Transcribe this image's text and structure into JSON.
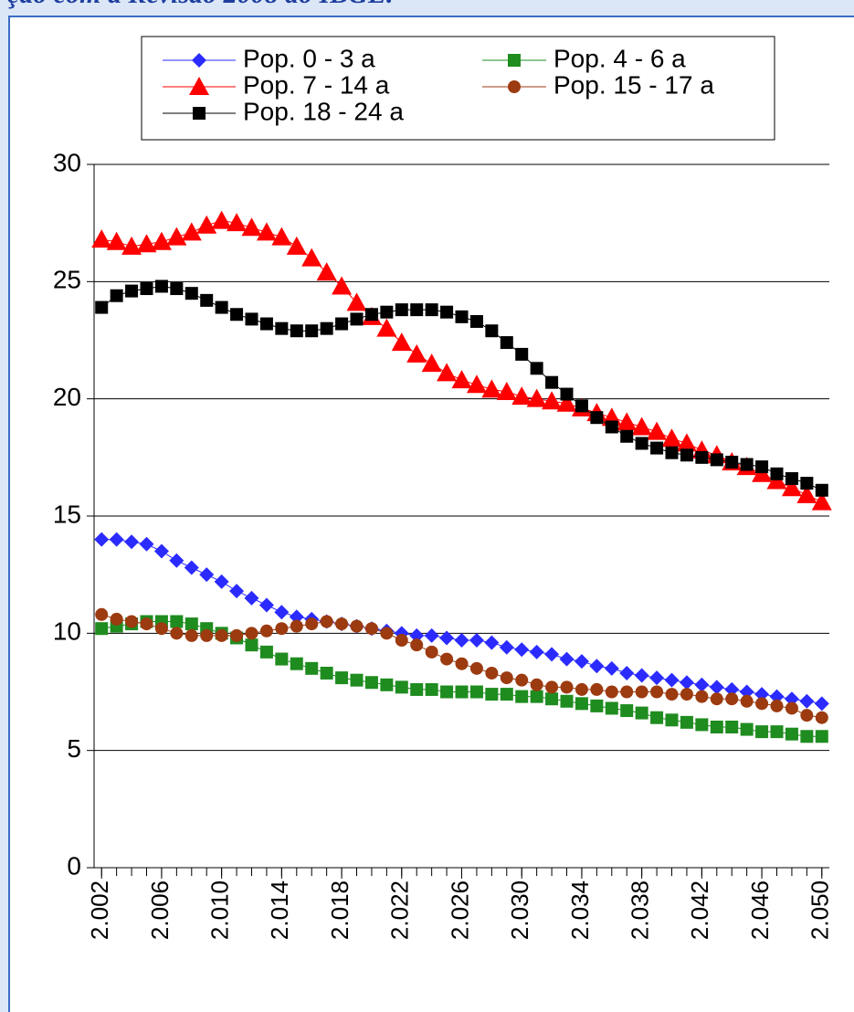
{
  "chart_data": {
    "type": "scatter",
    "title": "ção com a Revisão 2008 do IBGE.",
    "x": [
      2002,
      2003,
      2004,
      2005,
      2006,
      2007,
      2008,
      2009,
      2010,
      2011,
      2012,
      2013,
      2014,
      2015,
      2016,
      2017,
      2018,
      2019,
      2020,
      2021,
      2022,
      2023,
      2024,
      2025,
      2026,
      2027,
      2028,
      2029,
      2030,
      2031,
      2032,
      2033,
      2034,
      2035,
      2036,
      2037,
      2038,
      2039,
      2040,
      2041,
      2042,
      2043,
      2044,
      2045,
      2046,
      2047,
      2048,
      2049,
      2050
    ],
    "xlim": [
      2001.5,
      2050.5
    ],
    "xticks": [
      {
        "value": 2002,
        "label": "2.002"
      },
      {
        "value": 2006,
        "label": "2.006"
      },
      {
        "value": 2010,
        "label": "2.010"
      },
      {
        "value": 2014,
        "label": "2.014"
      },
      {
        "value": 2018,
        "label": "2.018"
      },
      {
        "value": 2022,
        "label": "2.022"
      },
      {
        "value": 2026,
        "label": "2.026"
      },
      {
        "value": 2030,
        "label": "2.030"
      },
      {
        "value": 2034,
        "label": "2.034"
      },
      {
        "value": 2038,
        "label": "2.038"
      },
      {
        "value": 2042,
        "label": "2.042"
      },
      {
        "value": 2046,
        "label": "2.046"
      },
      {
        "value": 2050,
        "label": "2.050"
      }
    ],
    "ylim": [
      0,
      30
    ],
    "yticks": [
      0,
      5,
      10,
      15,
      20,
      25,
      30
    ],
    "grid": true,
    "series": [
      {
        "name": "Pop. 0 - 3 a",
        "color": "#2b2bff",
        "marker": "diamond",
        "values": [
          14.0,
          14.0,
          13.9,
          13.8,
          13.5,
          13.1,
          12.8,
          12.5,
          12.2,
          11.8,
          11.5,
          11.2,
          10.9,
          10.7,
          10.6,
          10.5,
          10.4,
          10.3,
          10.2,
          10.1,
          10.0,
          9.9,
          9.9,
          9.8,
          9.7,
          9.7,
          9.6,
          9.4,
          9.3,
          9.2,
          9.1,
          8.9,
          8.8,
          8.6,
          8.5,
          8.3,
          8.2,
          8.1,
          8.0,
          7.9,
          7.8,
          7.7,
          7.6,
          7.5,
          7.4,
          7.3,
          7.2,
          7.1,
          7.0
        ]
      },
      {
        "name": "Pop. 4 - 6 a",
        "color": "#1f8c1f",
        "marker": "square",
        "values": [
          10.2,
          10.3,
          10.4,
          10.5,
          10.5,
          10.5,
          10.4,
          10.2,
          10.0,
          9.8,
          9.5,
          9.2,
          8.9,
          8.7,
          8.5,
          8.3,
          8.1,
          8.0,
          7.9,
          7.8,
          7.7,
          7.6,
          7.6,
          7.5,
          7.5,
          7.5,
          7.4,
          7.4,
          7.3,
          7.3,
          7.2,
          7.1,
          7.0,
          6.9,
          6.8,
          6.7,
          6.6,
          6.4,
          6.3,
          6.2,
          6.1,
          6.0,
          6.0,
          5.9,
          5.8,
          5.8,
          5.7,
          5.6,
          5.6
        ]
      },
      {
        "name": "Pop. 7 - 14 a",
        "color": "#ff0000",
        "marker": "triangle",
        "values": [
          26.8,
          26.7,
          26.5,
          26.6,
          26.7,
          26.9,
          27.1,
          27.4,
          27.6,
          27.5,
          27.3,
          27.1,
          26.9,
          26.5,
          26.0,
          25.4,
          24.8,
          24.1,
          23.5,
          23.0,
          22.4,
          21.9,
          21.5,
          21.1,
          20.8,
          20.6,
          20.4,
          20.3,
          20.1,
          20.0,
          19.9,
          19.8,
          19.6,
          19.4,
          19.2,
          19.0,
          18.8,
          18.6,
          18.3,
          18.1,
          17.8,
          17.6,
          17.3,
          17.1,
          16.8,
          16.5,
          16.2,
          15.9,
          15.6
        ]
      },
      {
        "name": "Pop. 15 - 17 a",
        "color": "#9c3a10",
        "marker": "circle",
        "values": [
          10.8,
          10.6,
          10.5,
          10.4,
          10.2,
          10.0,
          9.9,
          9.9,
          9.9,
          9.9,
          10.0,
          10.1,
          10.2,
          10.3,
          10.4,
          10.5,
          10.4,
          10.3,
          10.2,
          10.0,
          9.7,
          9.5,
          9.2,
          8.9,
          8.7,
          8.5,
          8.3,
          8.1,
          8.0,
          7.8,
          7.7,
          7.7,
          7.6,
          7.6,
          7.5,
          7.5,
          7.5,
          7.5,
          7.4,
          7.4,
          7.3,
          7.2,
          7.2,
          7.1,
          7.0,
          6.9,
          6.8,
          6.5,
          6.4
        ]
      },
      {
        "name": "Pop. 18 - 24 a",
        "color": "#000000",
        "marker": "square",
        "values": [
          23.9,
          24.4,
          24.6,
          24.7,
          24.8,
          24.7,
          24.5,
          24.2,
          23.9,
          23.6,
          23.4,
          23.2,
          23.0,
          22.9,
          22.9,
          23.0,
          23.2,
          23.4,
          23.6,
          23.7,
          23.8,
          23.8,
          23.8,
          23.7,
          23.5,
          23.3,
          22.9,
          22.4,
          21.9,
          21.3,
          20.7,
          20.2,
          19.7,
          19.2,
          18.8,
          18.4,
          18.1,
          17.9,
          17.7,
          17.6,
          17.5,
          17.4,
          17.3,
          17.2,
          17.1,
          16.8,
          16.6,
          16.4,
          16.1
        ]
      }
    ]
  }
}
